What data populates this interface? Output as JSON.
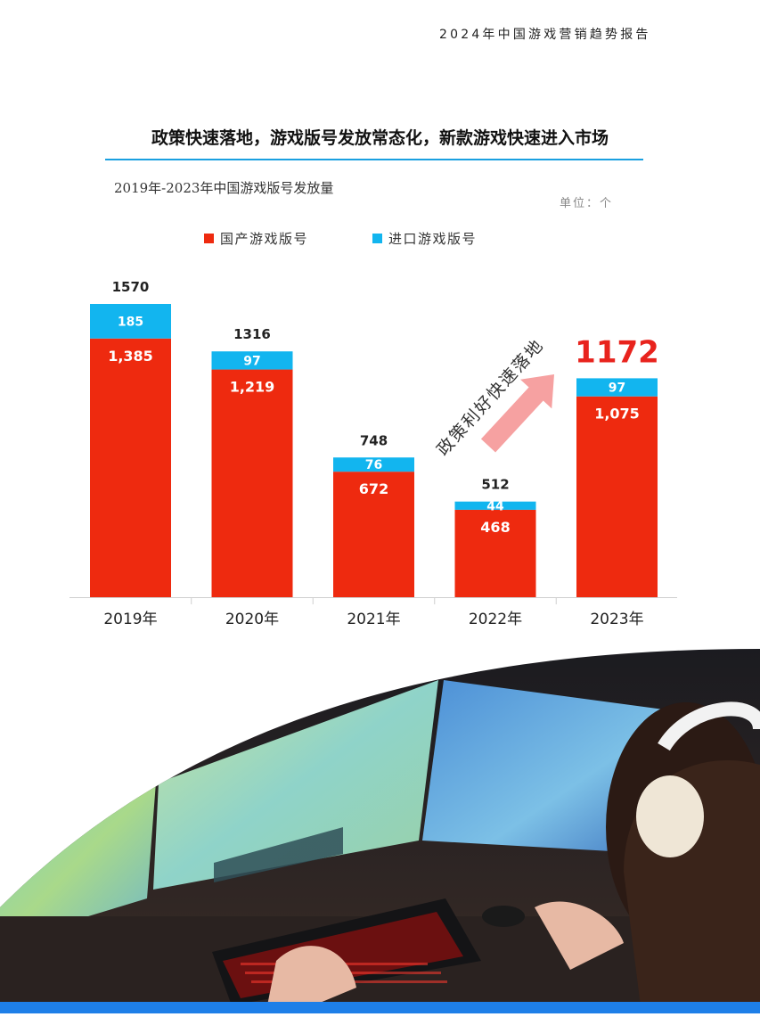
{
  "header": {
    "report_title": "2024年中国游戏营销趋势报告"
  },
  "section": {
    "title": "政策快速落地，游戏版号发放常态化，新款游戏快速进入市场"
  },
  "colors": {
    "domestic": "#ee2a0f",
    "imported": "#12b5ef",
    "arrow": "#f6a1a1",
    "accent_rule": "#1aa0e0"
  },
  "icons": {
    "trend_arrow": "up-right-arrow-icon"
  },
  "chart_data": {
    "type": "bar",
    "stacked": true,
    "subtitle": "2019年-2023年中国游戏版号发放量",
    "unit": "单位：个",
    "categories": [
      "2019年",
      "2020年",
      "2021年",
      "2022年",
      "2023年"
    ],
    "series": [
      {
        "name": "国产游戏版号",
        "values": [
          1385,
          1219,
          672,
          468,
          1075
        ],
        "labels": [
          "1,385",
          "1,219",
          "672",
          "468",
          "1,075"
        ]
      },
      {
        "name": "进口游戏版号",
        "values": [
          185,
          97,
          76,
          44,
          97
        ],
        "labels": [
          "185",
          "97",
          "76",
          "44",
          "97"
        ]
      }
    ],
    "totals": [
      1570,
      1316,
      748,
      512,
      1172
    ],
    "legend_position": "top",
    "grid": false,
    "annotation": "政策利好快速落地",
    "highlight_category": "2023年"
  }
}
